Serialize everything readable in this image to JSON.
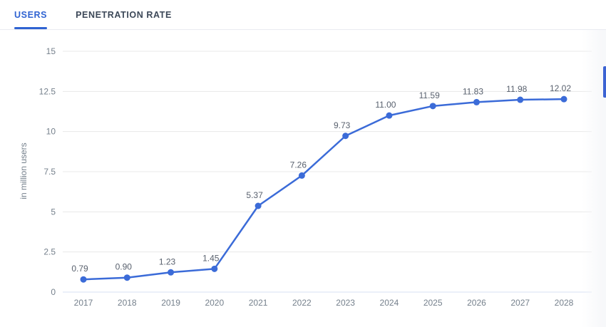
{
  "tabs": [
    {
      "label": "USERS",
      "active": true
    },
    {
      "label": "PENETRATION RATE",
      "active": false
    }
  ],
  "colors": {
    "accent": "#3b6bd8",
    "tab_active": "#2f63d2",
    "grid": "#e8e8e8",
    "zero_axis": "#d7e0f3",
    "tick_text": "#75808c",
    "value_label": "#59616e"
  },
  "chart_data": {
    "type": "line",
    "title": "",
    "xlabel": "",
    "ylabel": "in million users",
    "categories": [
      "2017",
      "2018",
      "2019",
      "2020",
      "2021",
      "2022",
      "2023",
      "2024",
      "2025",
      "2026",
      "2027",
      "2028"
    ],
    "values": [
      0.79,
      0.9,
      1.23,
      1.45,
      5.37,
      7.26,
      9.73,
      11.0,
      11.59,
      11.83,
      11.98,
      12.02
    ],
    "value_labels": [
      "0.79",
      "0.90",
      "1.23",
      "1.45",
      "5.37",
      "7.26",
      "9.73",
      "11.00",
      "11.59",
      "11.83",
      "11.98",
      "12.02"
    ],
    "ylim": [
      0,
      15
    ],
    "yticks": [
      0,
      2.5,
      5,
      7.5,
      10,
      12.5,
      15
    ],
    "ytick_labels": [
      "0",
      "2.5",
      "5",
      "7.5",
      "10",
      "12.5",
      "15"
    ],
    "grid": true,
    "legend": "none",
    "marker": "circle"
  }
}
